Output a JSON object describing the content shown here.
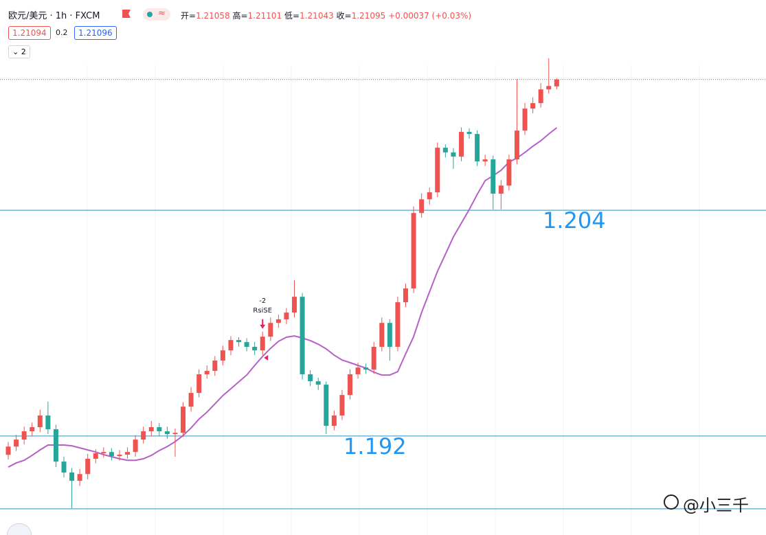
{
  "header": {
    "symbol": "欧元/美元 · 1h · FXCM",
    "ohlc_labels": [
      "开=",
      "高=",
      "低=",
      "收="
    ],
    "change": "+0.00037 (+0.03%)",
    "bid": 1.21094,
    "spread": 0.2,
    "ask": 1.21096,
    "indicator_count": 2
  },
  "watermark": "@小三千",
  "chart_data": {
    "type": "candlestick",
    "up_color": "#ef5350",
    "down_color": "#26a69a",
    "ma_color": "#b65fc8",
    "level_color": "#2a8fbf",
    "ylim": [
      1.18674,
      1.21517
    ],
    "open": [
      1.191,
      1.19144,
      1.19181,
      1.19225,
      1.19247,
      1.19309,
      1.19236,
      1.19064,
      1.19006,
      1.18962,
      1.18998,
      1.19079,
      1.19108,
      1.19115,
      1.19093,
      1.19101,
      1.19115,
      1.19181,
      1.19225,
      1.19247,
      1.19225,
      1.1921,
      1.19217,
      1.19356,
      1.19429,
      1.19528,
      1.19546,
      1.19601,
      1.19655,
      1.1971,
      1.19699,
      1.19674,
      1.19655,
      1.19728,
      1.19801,
      1.1982,
      1.19856,
      1.1994,
      1.19528,
      1.19491,
      1.19473,
      1.19254,
      1.19309,
      1.19418,
      1.19528,
      1.19564,
      1.19553,
      1.19674,
      1.19801,
      1.19674,
      1.19911,
      1.19984,
      1.20385,
      1.20458,
      1.20495,
      1.20732,
      1.20707,
      1.20685,
      1.20816,
      1.20805,
      1.20659,
      1.2067,
      1.20488,
      1.20531,
      1.2067,
      1.20823,
      1.2094,
      1.20969,
      1.21042,
      1.21058
    ],
    "high": [
      1.19169,
      1.19206,
      1.1925,
      1.19272,
      1.1934,
      1.19383,
      1.1926,
      1.1909,
      1.1903,
      1.19025,
      1.19105,
      1.1913,
      1.1914,
      1.19135,
      1.19125,
      1.1914,
      1.19205,
      1.1925,
      1.1928,
      1.1927,
      1.1925,
      1.1924,
      1.1938,
      1.1946,
      1.19555,
      1.19575,
      1.19625,
      1.1968,
      1.1973,
      1.19725,
      1.1972,
      1.197,
      1.19755,
      1.1983,
      1.19845,
      1.1988,
      1.20028,
      1.1996,
      1.1955,
      1.1951,
      1.1949,
      1.19335,
      1.19445,
      1.19555,
      1.1959,
      1.19585,
      1.197,
      1.1983,
      1.1982,
      1.1994,
      1.2001,
      1.2042,
      1.2049,
      1.2052,
      1.2076,
      1.2075,
      1.2073,
      1.2084,
      1.20835,
      1.20825,
      1.20695,
      1.2069,
      1.2056,
      1.20695,
      1.21097,
      1.2097,
      1.21,
      1.21075,
      1.21207,
      1.21101
    ],
    "low": [
      1.19075,
      1.1912,
      1.19155,
      1.192,
      1.1922,
      1.1921,
      1.19035,
      1.1898,
      1.18816,
      1.18935,
      1.1897,
      1.19055,
      1.19085,
      1.1907,
      1.1907,
      1.1908,
      1.1909,
      1.1916,
      1.192,
      1.192,
      1.19185,
      1.1909,
      1.19195,
      1.1933,
      1.19405,
      1.19505,
      1.1952,
      1.19575,
      1.1963,
      1.19675,
      1.1965,
      1.1963,
      1.1963,
      1.19705,
      1.19775,
      1.19795,
      1.1983,
      1.195,
      1.19465,
      1.19445,
      1.1921,
      1.1923,
      1.19285,
      1.19395,
      1.19505,
      1.1953,
      1.1953,
      1.1965,
      1.196,
      1.1965,
      1.19885,
      1.1996,
      1.2036,
      1.2043,
      1.2047,
      1.2068,
      1.2062,
      1.2066,
      1.2078,
      1.20635,
      1.20635,
      1.20404,
      1.20404,
      1.20505,
      1.20645,
      1.208,
      1.20915,
      1.20945,
      1.2102,
      1.21043
    ],
    "close": [
      1.19144,
      1.19181,
      1.19225,
      1.19247,
      1.19309,
      1.19236,
      1.19064,
      1.19006,
      1.18962,
      1.18998,
      1.19079,
      1.19108,
      1.19115,
      1.19093,
      1.19101,
      1.19115,
      1.19181,
      1.19225,
      1.19247,
      1.19225,
      1.1921,
      1.19217,
      1.19356,
      1.19429,
      1.19528,
      1.19546,
      1.19601,
      1.19655,
      1.1971,
      1.19699,
      1.19674,
      1.19655,
      1.19728,
      1.19801,
      1.1982,
      1.19856,
      1.1994,
      1.19528,
      1.19491,
      1.19473,
      1.19254,
      1.19309,
      1.19418,
      1.19528,
      1.19564,
      1.19553,
      1.19674,
      1.19801,
      1.19674,
      1.19911,
      1.19984,
      1.20385,
      1.20458,
      1.20495,
      1.20732,
      1.20707,
      1.20685,
      1.20816,
      1.20805,
      1.20659,
      1.2067,
      1.20488,
      1.20531,
      1.2067,
      1.20823,
      1.2094,
      1.20969,
      1.21042,
      1.2106,
      1.21095
    ],
    "ma": [
      1.19035,
      1.19057,
      1.19071,
      1.19097,
      1.19126,
      1.19152,
      1.19152,
      1.19152,
      1.19148,
      1.19137,
      1.19126,
      1.19115,
      1.19101,
      1.1909,
      1.19079,
      1.19071,
      1.19071,
      1.19079,
      1.19097,
      1.19123,
      1.19144,
      1.1917,
      1.19203,
      1.19243,
      1.1929,
      1.19327,
      1.19371,
      1.19415,
      1.19451,
      1.19488,
      1.19524,
      1.19575,
      1.19623,
      1.19666,
      1.19703,
      1.19725,
      1.19732,
      1.19721,
      1.19707,
      1.19688,
      1.19663,
      1.1963,
      1.19604,
      1.1959,
      1.19575,
      1.19561,
      1.19539,
      1.19524,
      1.19524,
      1.19542,
      1.19637,
      1.19728,
      1.19856,
      1.19966,
      1.20075,
      1.20166,
      1.20258,
      1.20331,
      1.20404,
      1.20484,
      1.20557,
      1.20583,
      1.20612,
      1.20656,
      1.20677,
      1.20707,
      1.2074,
      1.20769,
      1.20805,
      1.20838
    ],
    "levels": [
      1.204,
      1.192
    ],
    "extra_levels": [
      1.18813
    ],
    "signal": {
      "count": -2,
      "name": "RsiSE",
      "at": 32
    }
  }
}
